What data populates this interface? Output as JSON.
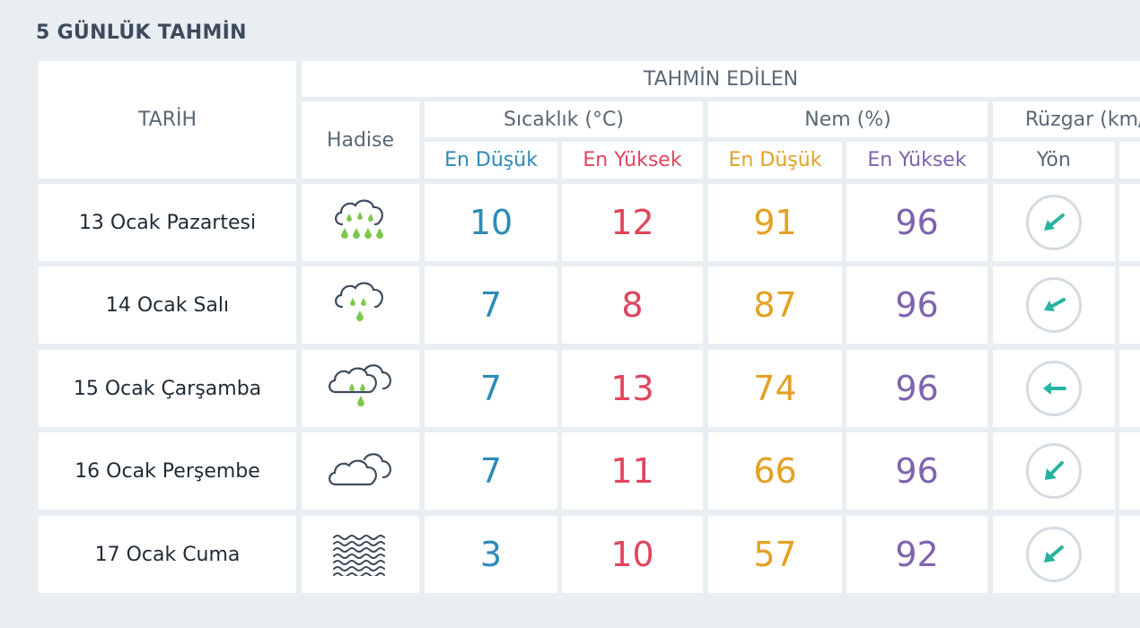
{
  "page_title": "5 GÜNLÜK TAHMİN",
  "headers": {
    "date": "TARİH",
    "forecast_group": "TAHMİN EDİLEN",
    "phenomenon": "Hadise",
    "temperature": "Sıcaklık (°C)",
    "humidity": "Nem (%)",
    "wind": "Rüzgar (km/",
    "temp_low": "En Düşük",
    "temp_high": "En Yüksek",
    "hum_low": "En Düşük",
    "hum_high": "En Yüksek",
    "wind_dir": "Yön"
  },
  "colors": {
    "temp_low": "#2d8bb6",
    "temp_high": "#e0455d",
    "hum_low": "#e3a124",
    "hum_high": "#7f63ad",
    "rain": "#7cc84a",
    "wind_arrow": "#27b3a0"
  },
  "rows": [
    {
      "date": "13 Ocak Pazartesi",
      "icon": "heavy-rain-icon",
      "temp_low": "10",
      "temp_high": "12",
      "hum_low": "91",
      "hum_high": "96",
      "wind_icon": "wind-arrow-southwest-icon"
    },
    {
      "date": "14 Ocak Salı",
      "icon": "rain-icon",
      "temp_low": "7",
      "temp_high": "8",
      "hum_low": "87",
      "hum_high": "96",
      "wind_icon": "wind-arrow-southwest-icon"
    },
    {
      "date": "15 Ocak Çarşamba",
      "icon": "cloudy-rain-icon",
      "temp_low": "7",
      "temp_high": "13",
      "hum_low": "74",
      "hum_high": "96",
      "wind_icon": "wind-arrow-west-icon"
    },
    {
      "date": "16 Ocak Perşembe",
      "icon": "cloudy-icon",
      "temp_low": "7",
      "temp_high": "11",
      "hum_low": "66",
      "hum_high": "96",
      "wind_icon": "wind-arrow-southwest-icon"
    },
    {
      "date": "17 Ocak Cuma",
      "icon": "fog-icon",
      "temp_low": "3",
      "temp_high": "10",
      "hum_low": "57",
      "hum_high": "92",
      "wind_icon": "wind-arrow-southwest-icon"
    }
  ]
}
